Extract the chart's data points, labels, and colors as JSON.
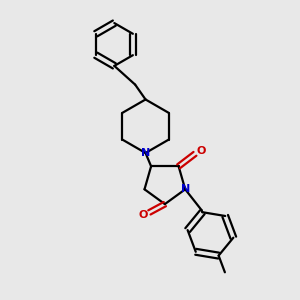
{
  "bg_color": "#e8e8e8",
  "bond_color": "#000000",
  "N_color": "#0000cc",
  "O_color": "#cc0000",
  "line_width": 1.6,
  "figsize": [
    3.0,
    3.0
  ],
  "dpi": 100,
  "xlim": [
    0,
    10
  ],
  "ylim": [
    0,
    10
  ]
}
